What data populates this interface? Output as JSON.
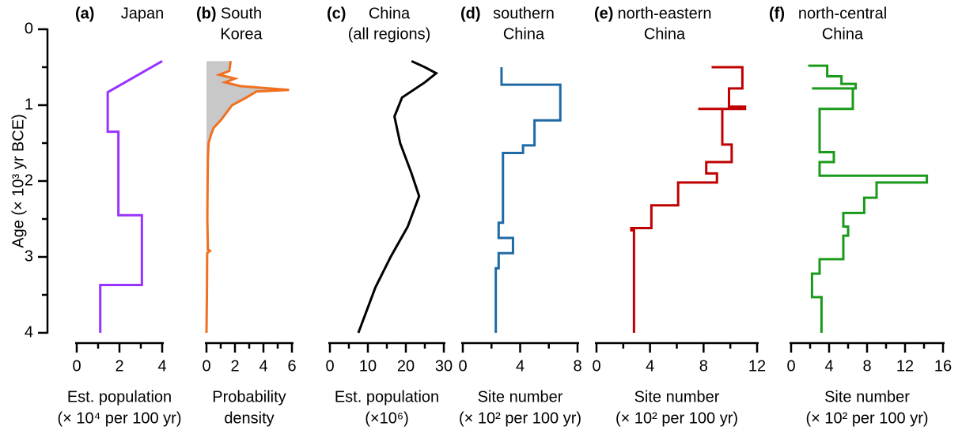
{
  "age_axis": {
    "label": "Age (× 10³ yr BCE)",
    "lim": [
      0,
      4
    ],
    "ticks": [
      0,
      1,
      2,
      3,
      4
    ],
    "minor_ticks": [
      0.5,
      1.5,
      2.5,
      3.5
    ]
  },
  "chart_data": [
    {
      "type": "line",
      "panel": "(a)",
      "title": [
        "Japan"
      ],
      "xlabel": [
        "Est. population",
        "(× 10⁴ per 100 yr)"
      ],
      "color": "#9933ff",
      "ages": [
        0.42,
        0.83,
        1.35,
        1.35,
        2.45,
        2.45,
        3.37,
        3.37,
        4.0
      ],
      "values": [
        4.0,
        1.45,
        1.45,
        1.95,
        1.95,
        3.05,
        3.05,
        1.1,
        1.1
      ],
      "xlim": [
        0,
        4
      ],
      "xticks": [
        0,
        2,
        4
      ],
      "xminorticks": [
        1,
        3
      ]
    },
    {
      "type": "line",
      "panel": "(b)",
      "title": [
        "South",
        "Korea"
      ],
      "xlabel": [
        "Probability",
        "density"
      ],
      "color": "#f07020",
      "fill": "#c8c8c8",
      "ages": [
        0.42,
        0.55,
        0.6,
        0.65,
        0.7,
        0.75,
        0.8,
        0.82,
        0.9,
        1.0,
        1.1,
        1.2,
        1.3,
        1.4,
        1.5,
        1.7,
        2.0,
        2.5,
        2.9,
        2.92,
        2.95,
        3.5,
        4.0
      ],
      "values": [
        1.7,
        1.6,
        0.9,
        2.0,
        1.3,
        2.4,
        5.8,
        3.5,
        2.8,
        1.8,
        1.4,
        1.0,
        0.5,
        0.3,
        0.15,
        0.1,
        0.08,
        0.06,
        0.1,
        0.25,
        0.05,
        0.03,
        0.0
      ],
      "xlim": [
        0,
        6
      ],
      "xticks": [
        0,
        2,
        4,
        6
      ],
      "xminorticks": [
        1,
        3,
        5
      ]
    },
    {
      "type": "line",
      "panel": "(c)",
      "title": [
        "China",
        "(all regions)"
      ],
      "xlabel": [
        "Est. population",
        "(×10⁶)"
      ],
      "color": "#000000",
      "ages": [
        0.42,
        0.5,
        0.58,
        0.7,
        0.9,
        1.15,
        1.5,
        1.9,
        2.2,
        2.6,
        3.0,
        3.4,
        3.8,
        4.0
      ],
      "values": [
        21.5,
        25,
        28,
        25,
        19,
        17,
        18.5,
        21.5,
        23.5,
        20.5,
        16,
        12,
        9,
        7.5
      ],
      "xlim": [
        0,
        30
      ],
      "xticks": [
        0,
        10,
        20,
        30
      ],
      "xminorticks": [
        5,
        15,
        25
      ]
    },
    {
      "type": "line",
      "panel": "(d)",
      "title": [
        "southern",
        "China"
      ],
      "xlabel": [
        "Site number",
        "(× 10² per 100 yr)"
      ],
      "color": "#1f6aa5",
      "ages": [
        0.5,
        0.73,
        0.73,
        1.2,
        1.2,
        1.53,
        1.53,
        1.63,
        1.63,
        2.55,
        2.55,
        2.75,
        2.75,
        2.95,
        2.95,
        3.15,
        3.15,
        4.0
      ],
      "values": [
        2.7,
        2.7,
        6.8,
        6.8,
        5.0,
        5.0,
        4.2,
        4.2,
        2.8,
        2.8,
        2.5,
        2.5,
        3.5,
        3.5,
        2.5,
        2.5,
        2.3,
        2.3
      ],
      "xlim": [
        0,
        8
      ],
      "xticks": [
        0,
        4,
        8
      ],
      "xminorticks": [
        2,
        6
      ]
    },
    {
      "type": "line",
      "panel": "(e)",
      "title": [
        "north-eastern",
        "China"
      ],
      "xlabel": [
        "Site number",
        "(× 10² per 100 yr)"
      ],
      "color": "#c00000",
      "ages": [
        0.5,
        0.5,
        0.78,
        0.78,
        1.02,
        1.02,
        1.05,
        1.05,
        1.05,
        1.52,
        1.52,
        1.75,
        1.75,
        1.9,
        1.9,
        2.02,
        2.02,
        2.32,
        2.32,
        2.62,
        2.62,
        2.65,
        2.65,
        4.0
      ],
      "values": [
        8.6,
        10.9,
        10.9,
        9.9,
        9.9,
        11.1,
        11.1,
        7.6,
        9.4,
        9.4,
        10.1,
        10.1,
        8.2,
        8.2,
        9.0,
        9.0,
        6.1,
        6.1,
        4.1,
        4.1,
        2.6,
        2.6,
        2.8,
        2.8
      ],
      "xlim": [
        0,
        12
      ],
      "xticks": [
        0,
        4,
        8,
        12
      ],
      "xminorticks": [
        2,
        6,
        10
      ]
    },
    {
      "type": "line",
      "panel": "(f)",
      "title": [
        "north-central",
        "China"
      ],
      "xlabel": [
        "Site number",
        "(× 10² per 100 yr)"
      ],
      "color": "#1a9a1a",
      "ages": [
        0.48,
        0.48,
        0.62,
        0.62,
        0.72,
        0.72,
        0.78,
        0.78,
        0.78,
        1.05,
        1.05,
        1.62,
        1.62,
        1.75,
        1.75,
        1.93,
        1.93,
        2.02,
        2.02,
        2.22,
        2.22,
        2.42,
        2.42,
        2.6,
        2.6,
        2.72,
        2.72,
        3.03,
        3.03,
        3.22,
        3.22,
        3.53,
        3.53,
        4.0
      ],
      "values": [
        1.8,
        3.8,
        3.8,
        5.3,
        5.3,
        6.8,
        6.8,
        2.2,
        6.5,
        6.5,
        3.0,
        3.0,
        4.5,
        4.5,
        3.0,
        3.0,
        14.3,
        14.3,
        9.0,
        9.0,
        7.7,
        7.7,
        5.5,
        5.5,
        6.0,
        6.0,
        5.5,
        5.5,
        3.0,
        3.0,
        2.2,
        2.2,
        3.2,
        3.2
      ],
      "xlim": [
        0,
        16
      ],
      "xticks": [
        0,
        4,
        8,
        12,
        16
      ],
      "xminorticks": [
        2,
        6,
        10,
        14
      ]
    }
  ]
}
